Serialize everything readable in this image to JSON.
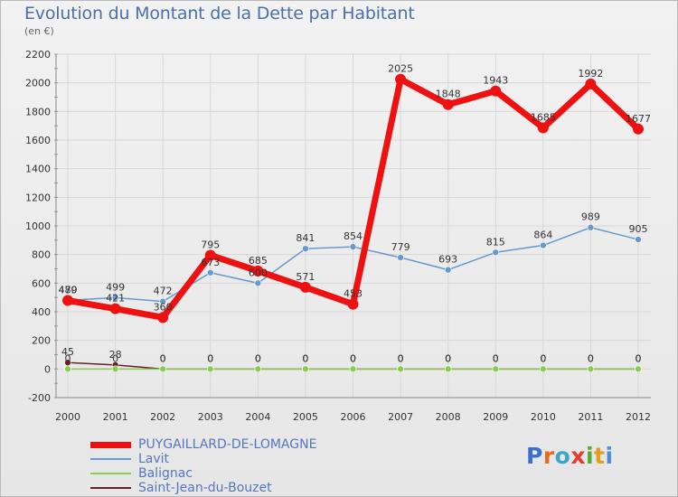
{
  "title": "Evolution du Montant de la Dette par Habitant",
  "unit_label": "(en €)",
  "logo": {
    "text": "Proxiti",
    "colors": [
      "#3a6fd0",
      "#e86a1b",
      "#3aa6c8",
      "#e6392f",
      "#5aa832",
      "#e59d1f",
      "#4a8fd6"
    ]
  },
  "chart_data": {
    "type": "line",
    "x": [
      2000,
      2001,
      2002,
      2003,
      2004,
      2005,
      2006,
      2007,
      2008,
      2009,
      2010,
      2011,
      2012
    ],
    "ylim": [
      -200,
      2200
    ],
    "yticks": [
      -200,
      0,
      200,
      400,
      600,
      800,
      1000,
      1200,
      1400,
      1600,
      1800,
      2000,
      2200
    ],
    "series": [
      {
        "name": "PUYGAILLARD-DE-LOMAGNE",
        "color": "#ee1111",
        "width": 7,
        "marker": 6,
        "values": [
          479,
          421,
          360,
          795,
          685,
          571,
          453,
          2025,
          1848,
          1943,
          1685,
          1992,
          1677
        ]
      },
      {
        "name": "Lavit",
        "color": "#6699cc",
        "width": 1.5,
        "marker": 3.5,
        "values": [
          480,
          499,
          472,
          673,
          600,
          841,
          854,
          779,
          693,
          815,
          864,
          989,
          905
        ]
      },
      {
        "name": "Balignac",
        "color": "#88cc55",
        "width": 1.5,
        "marker": 3.5,
        "values": [
          0,
          0,
          0,
          0,
          0,
          0,
          0,
          0,
          0,
          0,
          0,
          0,
          0
        ]
      },
      {
        "name": "Saint-Jean-du-Bouzet",
        "color": "#662222",
        "width": 1.5,
        "marker": 3.5,
        "values": [
          45,
          28,
          0,
          0,
          0,
          0,
          0,
          0,
          0,
          0,
          0,
          0,
          0
        ]
      }
    ]
  }
}
